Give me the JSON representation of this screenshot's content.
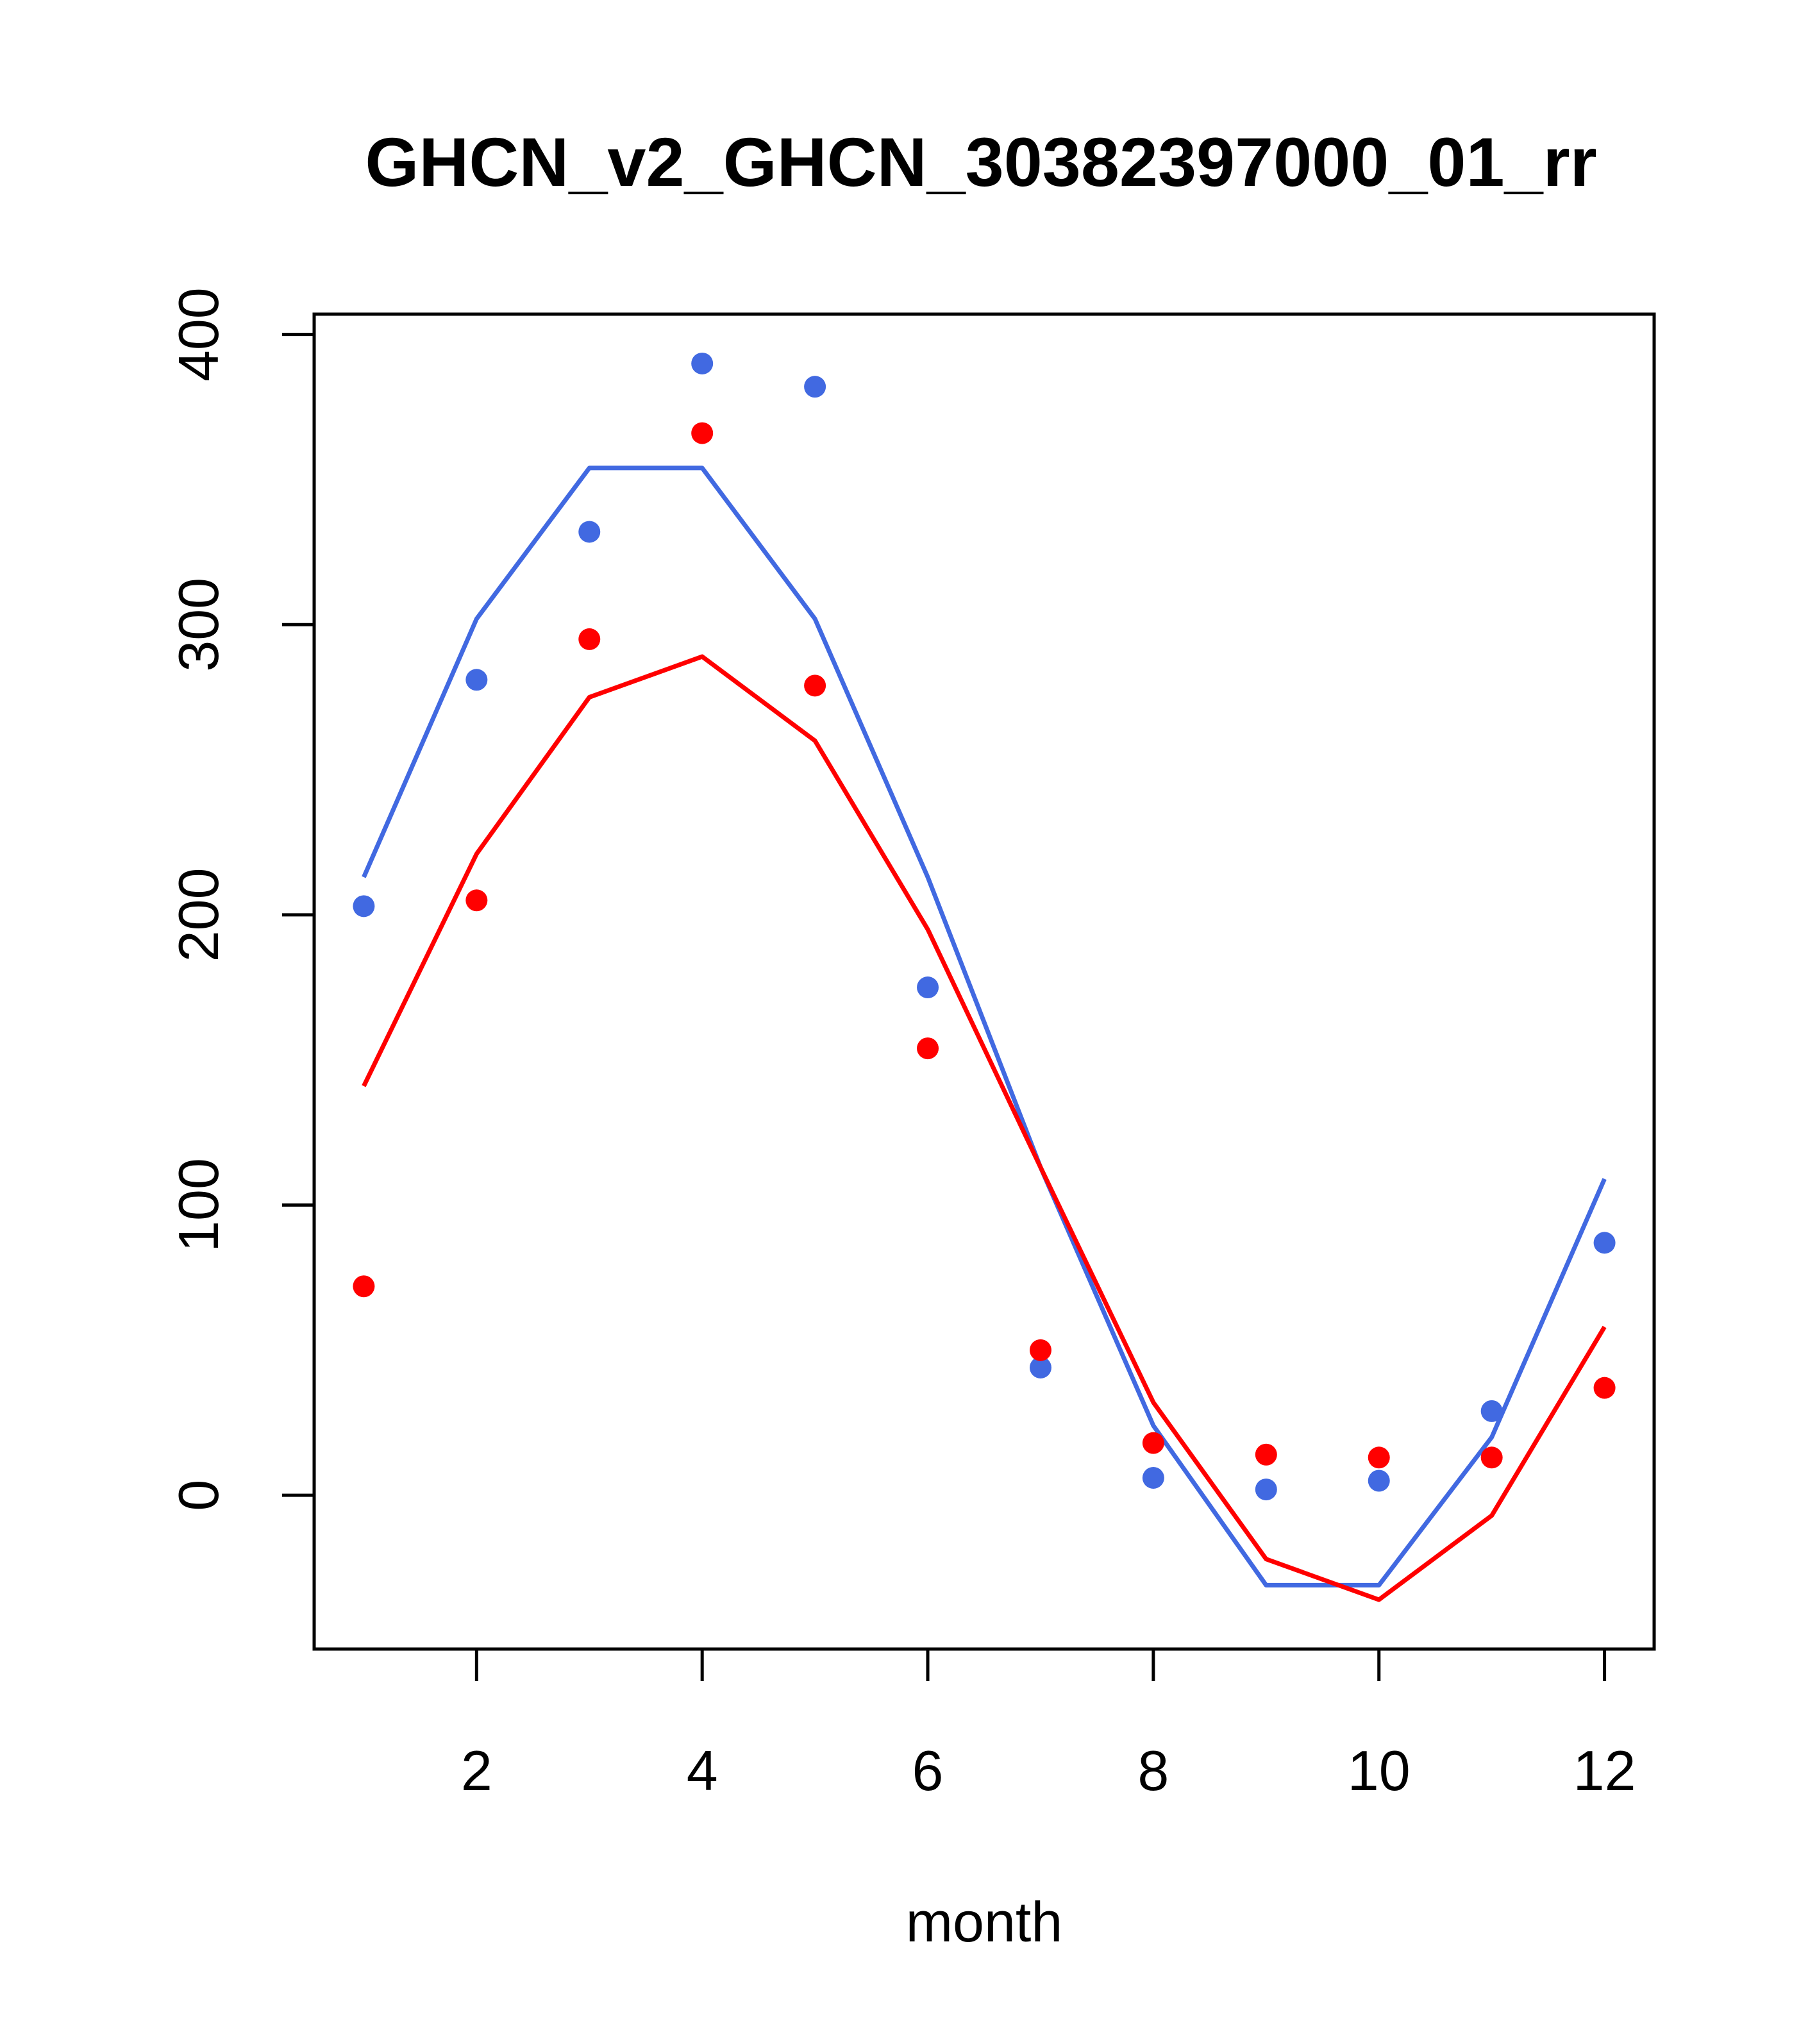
{
  "chart_data": {
    "type": "line",
    "title": "GHCN_v2_GHCN_30382397000_01_rr",
    "xlabel": "month",
    "ylabel": "",
    "xlim": [
      0.56,
      12.44
    ],
    "ylim": [
      -53,
      407
    ],
    "x_ticks": [
      2,
      4,
      6,
      8,
      10,
      12
    ],
    "y_ticks": [
      0,
      100,
      200,
      300,
      400
    ],
    "grid": false,
    "legend": "none",
    "x": [
      1,
      2,
      3,
      4,
      5,
      6,
      7,
      8,
      9,
      10,
      11,
      12
    ],
    "series": [
      {
        "color": "#4169E1",
        "points": [
          203,
          281,
          332,
          390,
          382,
          175,
          44,
          6,
          2,
          5,
          29,
          87
        ],
        "fit": [
          213,
          302,
          354,
          354,
          302,
          213,
          113,
          24,
          -31,
          -31,
          20,
          109
        ]
      },
      {
        "color": "#FF0000",
        "points": [
          72,
          205,
          295,
          366,
          279,
          154,
          50,
          18,
          14,
          13,
          13,
          37
        ],
        "fit": [
          141,
          221,
          275,
          289,
          260,
          195,
          113,
          32,
          -22,
          -36,
          -7,
          58
        ]
      }
    ]
  }
}
